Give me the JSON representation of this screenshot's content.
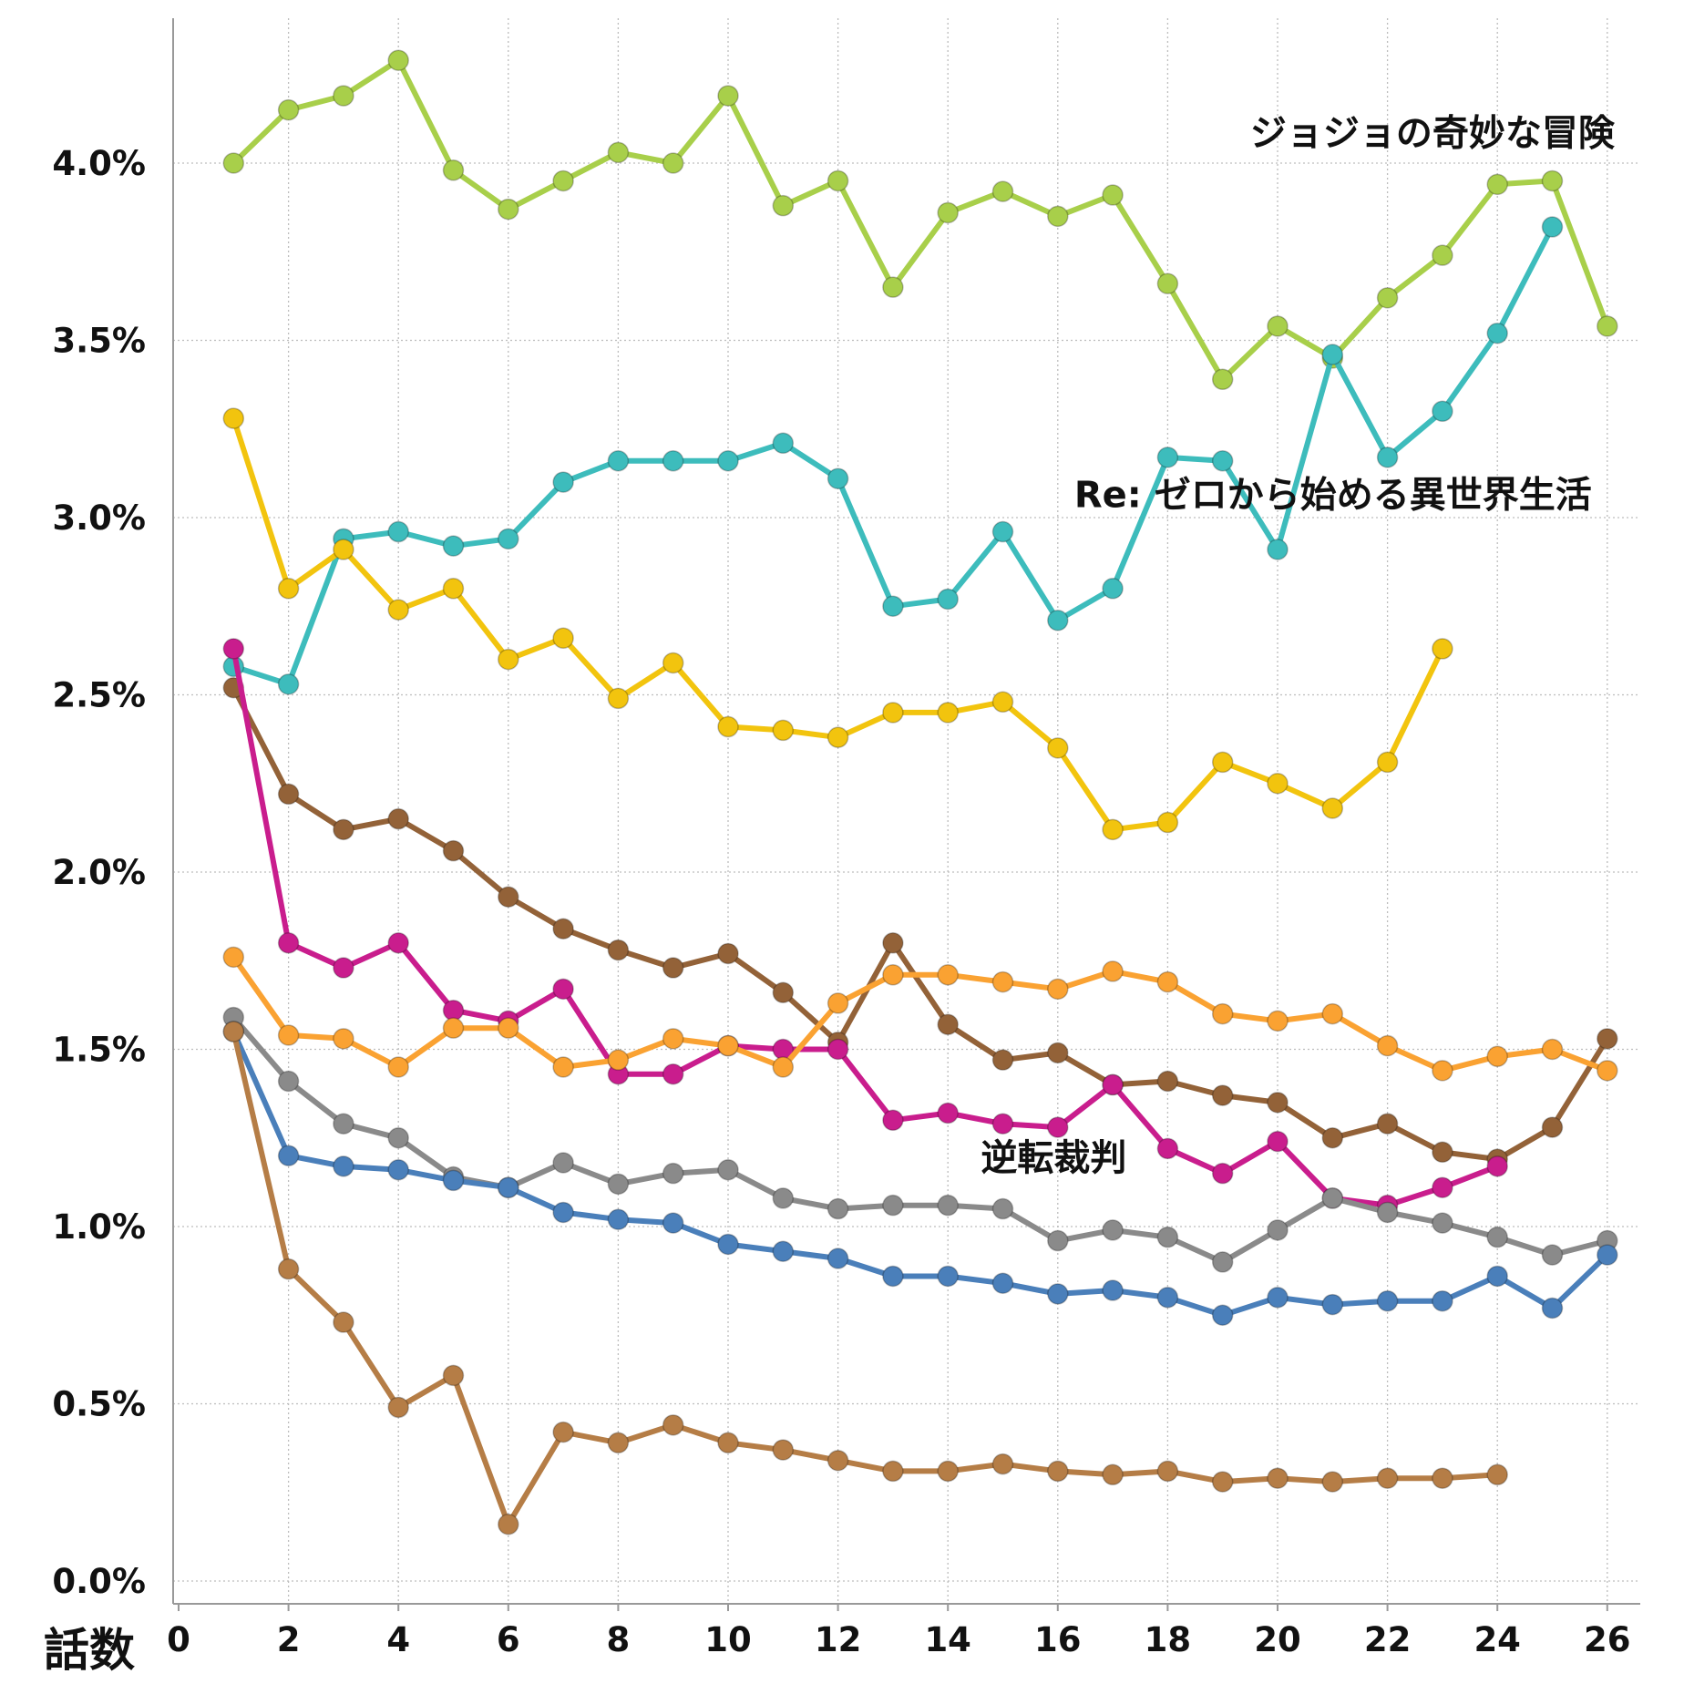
{
  "chart_data": {
    "type": "line",
    "xlabel": "話数",
    "ylabel": "",
    "xlim": [
      0,
      27
    ],
    "ylim": [
      0,
      4.4
    ],
    "xticks": [
      0,
      2,
      4,
      6,
      8,
      10,
      12,
      14,
      16,
      18,
      20,
      22,
      24,
      26
    ],
    "yticks": [
      {
        "value": 0.0,
        "label": "0.0%"
      },
      {
        "value": 0.5,
        "label": "0.5%"
      },
      {
        "value": 1.0,
        "label": "1.0%"
      },
      {
        "value": 1.5,
        "label": "1.5%"
      },
      {
        "value": 2.0,
        "label": "2.0%"
      },
      {
        "value": 2.5,
        "label": "2.5%"
      },
      {
        "value": 3.0,
        "label": "3.0%"
      },
      {
        "value": 3.5,
        "label": "3.5%"
      },
      {
        "value": 4.0,
        "label": "4.0%"
      }
    ],
    "grid": true,
    "annotations": [
      {
        "text": "ジョジョの奇妙な冒険",
        "x": 19.5,
        "y": 4.05
      },
      {
        "text": "Re: ゼロから始める異世界生活",
        "x": 16.3,
        "y": 3.03
      },
      {
        "text": "逆転裁判",
        "x": 14.6,
        "y": 1.16
      }
    ],
    "series": [
      {
        "color": "#a8cf4a",
        "x": [
          1,
          2,
          3,
          4,
          5,
          6,
          7,
          8,
          9,
          10,
          11,
          12,
          13,
          14,
          15,
          16,
          17,
          18,
          19,
          20,
          21,
          22,
          23,
          24,
          25,
          26
        ],
        "values": [
          4.0,
          4.15,
          4.19,
          4.29,
          3.98,
          3.87,
          3.95,
          4.03,
          4.0,
          4.19,
          3.88,
          3.95,
          3.65,
          3.86,
          3.92,
          3.85,
          3.91,
          3.66,
          3.39,
          3.54,
          3.45,
          3.62,
          3.74,
          3.94,
          3.95,
          3.54
        ]
      },
      {
        "color": "#3dbcbc",
        "x": [
          1,
          2,
          3,
          4,
          5,
          6,
          7,
          8,
          9,
          10,
          11,
          12,
          13,
          14,
          15,
          16,
          17,
          18,
          19,
          20,
          21,
          22,
          23,
          24,
          25
        ],
        "values": [
          2.58,
          2.53,
          2.94,
          2.96,
          2.92,
          2.94,
          3.1,
          3.16,
          3.16,
          3.16,
          3.21,
          3.11,
          2.75,
          2.77,
          2.96,
          2.71,
          2.8,
          3.17,
          3.16,
          2.91,
          3.46,
          3.17,
          3.3,
          3.52,
          3.82
        ]
      },
      {
        "color": "#f2c40e",
        "x": [
          1,
          2,
          3,
          4,
          5,
          6,
          7,
          8,
          9,
          10,
          11,
          12,
          13,
          14,
          15,
          16,
          17,
          18,
          19,
          20,
          21,
          22,
          23
        ],
        "values": [
          3.28,
          2.8,
          2.91,
          2.74,
          2.8,
          2.6,
          2.66,
          2.49,
          2.59,
          2.41,
          2.4,
          2.38,
          2.45,
          2.45,
          2.48,
          2.35,
          2.12,
          2.14,
          2.31,
          2.25,
          2.18,
          2.31,
          2.63
        ]
      },
      {
        "color": "#936238",
        "x": [
          1,
          2,
          3,
          4,
          5,
          6,
          7,
          8,
          9,
          10,
          11,
          12,
          13,
          14,
          15,
          16,
          17,
          18,
          19,
          20,
          21,
          22,
          23,
          24,
          25,
          26
        ],
        "values": [
          2.52,
          2.22,
          2.12,
          2.15,
          2.06,
          1.93,
          1.84,
          1.78,
          1.73,
          1.77,
          1.66,
          1.52,
          1.8,
          1.57,
          1.47,
          1.49,
          1.4,
          1.41,
          1.37,
          1.35,
          1.25,
          1.29,
          1.21,
          1.19,
          1.28,
          1.53
        ]
      },
      {
        "color": "#c91d8d",
        "x": [
          1,
          2,
          3,
          4,
          5,
          6,
          7,
          8,
          9,
          10,
          11,
          12,
          13,
          14,
          15,
          16,
          17,
          18,
          19,
          20,
          21,
          22,
          23,
          24
        ],
        "values": [
          2.63,
          1.8,
          1.73,
          1.8,
          1.61,
          1.58,
          1.67,
          1.43,
          1.43,
          1.51,
          1.5,
          1.5,
          1.3,
          1.32,
          1.29,
          1.28,
          1.4,
          1.22,
          1.15,
          1.24,
          1.08,
          1.06,
          1.11,
          1.17
        ]
      },
      {
        "color": "#faa232",
        "x": [
          1,
          2,
          3,
          4,
          5,
          6,
          7,
          8,
          9,
          10,
          11,
          12,
          13,
          14,
          15,
          16,
          17,
          18,
          19,
          20,
          21,
          22,
          23,
          24,
          25,
          26
        ],
        "values": [
          1.76,
          1.54,
          1.53,
          1.45,
          1.56,
          1.56,
          1.45,
          1.47,
          1.53,
          1.51,
          1.45,
          1.63,
          1.71,
          1.71,
          1.69,
          1.67,
          1.72,
          1.69,
          1.6,
          1.58,
          1.6,
          1.51,
          1.44,
          1.48,
          1.5,
          1.44
        ]
      },
      {
        "color": "#8a8a8a",
        "x": [
          1,
          2,
          3,
          4,
          5,
          6,
          7,
          8,
          9,
          10,
          11,
          12,
          13,
          14,
          15,
          16,
          17,
          18,
          19,
          20,
          21,
          22,
          23,
          24,
          25,
          26
        ],
        "values": [
          1.59,
          1.41,
          1.29,
          1.25,
          1.14,
          1.11,
          1.18,
          1.12,
          1.15,
          1.16,
          1.08,
          1.05,
          1.06,
          1.06,
          1.05,
          0.96,
          0.99,
          0.97,
          0.9,
          0.99,
          1.08,
          1.04,
          1.01,
          0.97,
          0.92,
          0.96
        ]
      },
      {
        "color": "#4a7fba",
        "x": [
          1,
          2,
          3,
          4,
          5,
          6,
          7,
          8,
          9,
          10,
          11,
          12,
          13,
          14,
          15,
          16,
          17,
          18,
          19,
          20,
          21,
          22,
          23,
          24,
          25,
          26
        ],
        "values": [
          1.55,
          1.2,
          1.17,
          1.16,
          1.13,
          1.11,
          1.04,
          1.02,
          1.01,
          0.95,
          0.93,
          0.91,
          0.86,
          0.86,
          0.84,
          0.81,
          0.82,
          0.8,
          0.75,
          0.8,
          0.78,
          0.79,
          0.79,
          0.86,
          0.77,
          0.92
        ]
      },
      {
        "color": "#b57d46",
        "x": [
          1,
          2,
          3,
          4,
          5,
          6,
          7,
          8,
          9,
          10,
          11,
          12,
          13,
          14,
          15,
          16,
          17,
          18,
          19,
          20,
          21,
          22,
          23,
          24
        ],
        "values": [
          1.55,
          0.88,
          0.73,
          0.49,
          0.58,
          0.16,
          0.42,
          0.39,
          0.44,
          0.39,
          0.37,
          0.34,
          0.31,
          0.31,
          0.33,
          0.31,
          0.3,
          0.31,
          0.28,
          0.29,
          0.28,
          0.29,
          0.29,
          0.3
        ]
      }
    ]
  }
}
